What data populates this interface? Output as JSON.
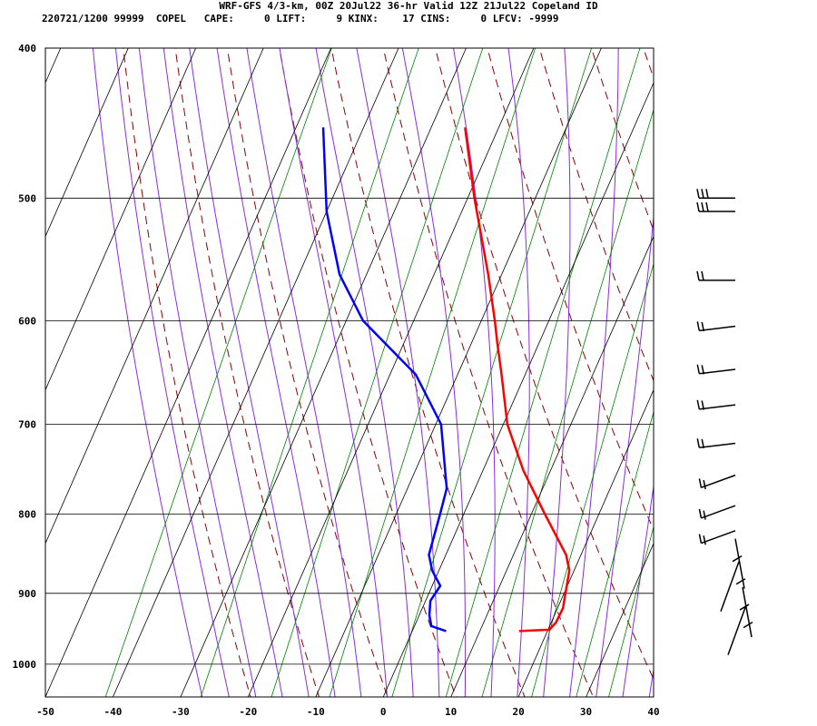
{
  "header": {
    "line1": "WRF-GFS 4/3-km, 00Z 20Jul22 36-hr Valid 12Z 21Jul22 Copeland ID",
    "line2": "220721/1200 99999  COPEL   CAPE:     0 LIFT:     9 KINX:    17 CINS:     0 LFCV: -9999"
  },
  "chart_data": {
    "type": "skew-t",
    "title": "WRF-GFS 4/3-km, 00Z 20Jul22 36-hr Valid 12Z 21Jul22 Copeland ID",
    "x_axis": {
      "ticks": [
        -50,
        -40,
        -30,
        -20,
        -10,
        0,
        10,
        20,
        30,
        40
      ],
      "range": [
        -50,
        40
      ]
    },
    "y_axis": {
      "ticks": [
        400,
        500,
        600,
        700,
        800,
        900,
        1000
      ],
      "range": [
        400,
        1050
      ],
      "scale": "log"
    },
    "colors": {
      "temperature": "#ff0000",
      "dewpoint": "#0000ff",
      "dry_adiabat": "#8b0000",
      "moist_adiabat": "#8a2be2",
      "mixing_ratio": "#008000",
      "grid": "#000000"
    },
    "series": [
      {
        "type": "temperature",
        "points": [
          {
            "p": 952,
            "t": 15.8
          },
          {
            "p": 950,
            "t": 20.2
          },
          {
            "p": 940,
            "t": 20.7
          },
          {
            "p": 920,
            "t": 20.8
          },
          {
            "p": 900,
            "t": 20.2
          },
          {
            "p": 870,
            "t": 19.3
          },
          {
            "p": 850,
            "t": 17.8
          },
          {
            "p": 800,
            "t": 12.0
          },
          {
            "p": 750,
            "t": 6.0
          },
          {
            "p": 700,
            "t": 0.6
          },
          {
            "p": 650,
            "t": -3.5
          },
          {
            "p": 620,
            "t": -6.2
          },
          {
            "p": 600,
            "t": -8.0
          },
          {
            "p": 560,
            "t": -12.0
          },
          {
            "p": 500,
            "t": -19.0
          },
          {
            "p": 450,
            "t": -25.0
          }
        ]
      },
      {
        "type": "dewpoint",
        "points": [
          {
            "p": 952,
            "t": 5.0
          },
          {
            "p": 945,
            "t": 2.5
          },
          {
            "p": 930,
            "t": 1.5
          },
          {
            "p": 910,
            "t": 0.7
          },
          {
            "p": 890,
            "t": 1.2
          },
          {
            "p": 870,
            "t": -1.0
          },
          {
            "p": 850,
            "t": -2.5
          },
          {
            "p": 800,
            "t": -3.5
          },
          {
            "p": 770,
            "t": -4.2
          },
          {
            "p": 700,
            "t": -9.2
          },
          {
            "p": 650,
            "t": -16.2
          },
          {
            "p": 600,
            "t": -27.5
          },
          {
            "p": 560,
            "t": -34.0
          },
          {
            "p": 510,
            "t": -40.0
          },
          {
            "p": 450,
            "t": -46.0
          }
        ]
      }
    ],
    "wind_barbs": [
      {
        "p": 450,
        "barbs": "1 pennant + full barbs"
      },
      {
        "p": 510
      },
      {
        "p": 565
      },
      {
        "p": 605
      },
      {
        "p": 645
      },
      {
        "p": 680
      },
      {
        "p": 720
      },
      {
        "p": 755
      },
      {
        "p": 790
      },
      {
        "p": 820
      },
      {
        "p": 870
      },
      {
        "p": 900
      },
      {
        "p": 935
      },
      {
        "p": 960
      }
    ]
  }
}
